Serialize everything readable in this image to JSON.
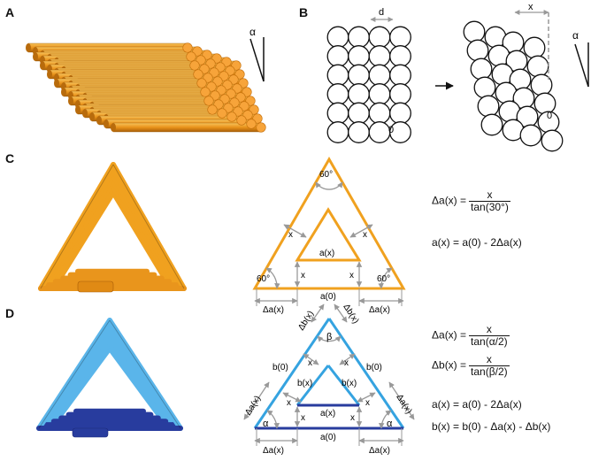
{
  "panels": {
    "a": "A",
    "b": "B",
    "c": "C",
    "d": "D"
  },
  "labels": {
    "alpha": "α",
    "beta": "β",
    "d": "d",
    "x": "x",
    "zero": "0",
    "sixty": "60°",
    "a0": "a(0)",
    "ax": "a(x)",
    "dax": "Δa(x)",
    "b0": "b(0)",
    "bx": "b(x)",
    "dbx": "Δb(x)"
  },
  "equations": {
    "c1_lhs": "Δa(x) =",
    "c1_num": "x",
    "c1_den": "tan(30°)",
    "c2": "a(x) = a(0) - 2Δa(x)",
    "d1_lhs": "Δa(x) =",
    "d1_num": "x",
    "d1_den": "tan(α/2)",
    "d2_lhs": "Δb(x) =",
    "d2_num": "x",
    "d2_den": "tan(β/2)",
    "d3": "a(x) = a(0) - 2Δa(x)",
    "d4": "b(x) = b(0) - Δa(x) - Δb(x)"
  },
  "colors": {
    "orange": "#f0a11f",
    "orange_dark": "#c7740f",
    "blue_light": "#35a3e0",
    "blue_dark": "#283c9e",
    "gray": "#999999"
  }
}
